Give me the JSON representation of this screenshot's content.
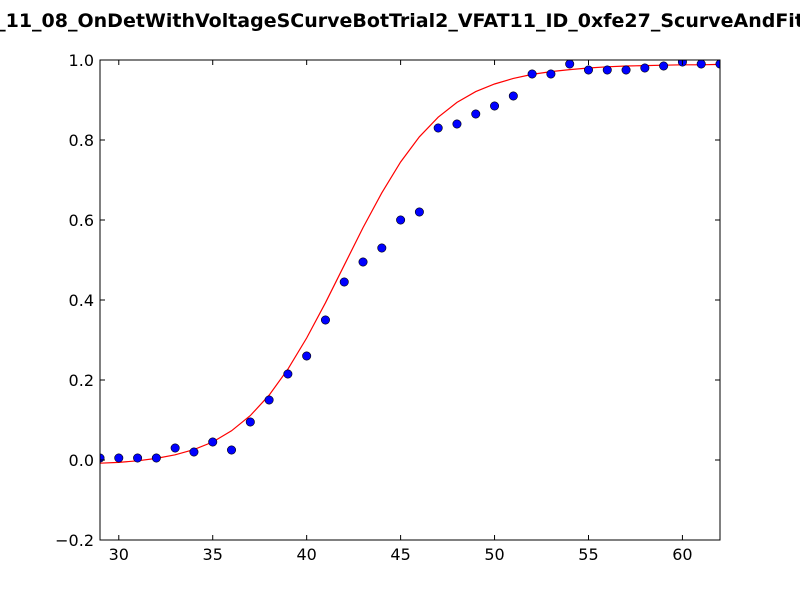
{
  "chart_data": {
    "type": "scatter",
    "title": "_11_08_OnDetWithVoltageSCurveBotTrial2_VFAT11_ID_0xfe27_ScurveAndFit",
    "xlabel": "",
    "ylabel": "",
    "xlim": [
      29,
      62
    ],
    "ylim": [
      -0.2,
      1.0
    ],
    "x_ticks": [
      30,
      35,
      40,
      45,
      50,
      55,
      60
    ],
    "y_ticks": [
      -0.2,
      0.0,
      0.2,
      0.4,
      0.6,
      0.8,
      1.0
    ],
    "x_tick_labels": [
      "30",
      "35",
      "40",
      "45",
      "50",
      "55",
      "60"
    ],
    "y_tick_labels": [
      "−0.2",
      "0.0",
      "0.2",
      "0.4",
      "0.6",
      "0.8",
      "1.0"
    ],
    "grid": false,
    "legend": "none",
    "points": {
      "color": "#0000ff",
      "x": [
        29,
        30,
        31,
        32,
        33,
        34,
        35,
        36,
        37,
        38,
        39,
        40,
        41,
        42,
        43,
        44,
        45,
        46,
        47,
        48,
        49,
        50,
        51,
        52,
        53,
        54,
        55,
        56,
        57,
        58,
        59,
        60,
        61,
        62
      ],
      "y": [
        0.005,
        0.005,
        0.005,
        0.005,
        0.03,
        0.02,
        0.045,
        0.025,
        0.095,
        0.15,
        0.215,
        0.26,
        0.35,
        0.445,
        0.495,
        0.53,
        0.6,
        0.62,
        0.83,
        0.84,
        0.865,
        0.885,
        0.91,
        0.965,
        0.965,
        0.99,
        0.975,
        0.975,
        0.975,
        0.98,
        0.985,
        0.995,
        0.99,
        0.99
      ]
    },
    "fit": {
      "color": "#ff0000",
      "x": [
        29,
        30,
        31,
        32,
        33,
        34,
        35,
        36,
        37,
        38,
        39,
        40,
        41,
        42,
        43,
        44,
        45,
        46,
        47,
        48,
        49,
        50,
        51,
        52,
        53,
        54,
        55,
        56,
        57,
        58,
        59,
        60,
        61,
        62
      ],
      "y": [
        -0.008,
        -0.006,
        -0.002,
        0.004,
        0.013,
        0.026,
        0.045,
        0.073,
        0.111,
        0.162,
        0.227,
        0.305,
        0.393,
        0.487,
        0.581,
        0.668,
        0.745,
        0.808,
        0.857,
        0.894,
        0.921,
        0.94,
        0.954,
        0.964,
        0.971,
        0.976,
        0.98,
        0.983,
        0.985,
        0.986,
        0.987,
        0.988,
        0.988,
        0.989
      ]
    }
  }
}
